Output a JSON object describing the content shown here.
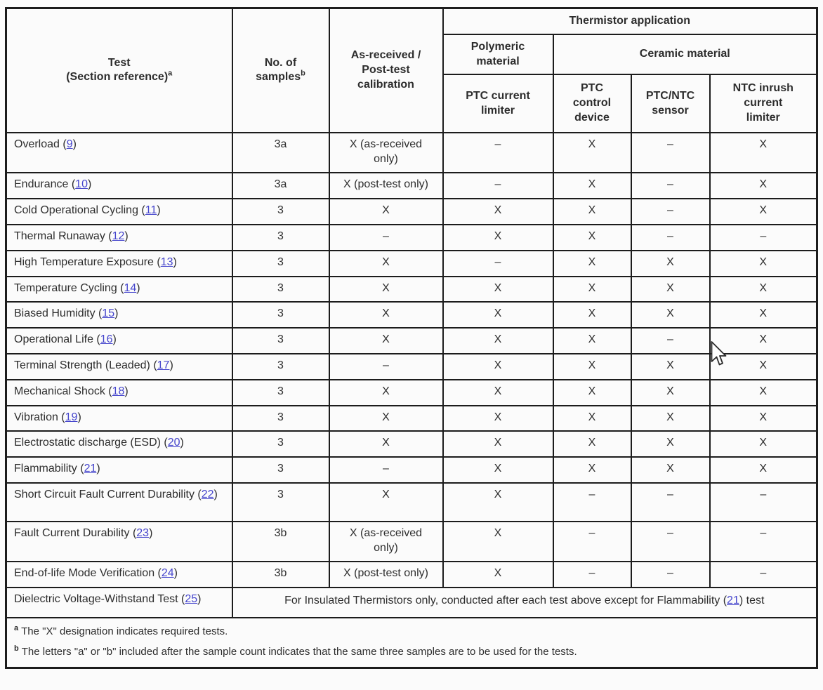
{
  "colors": {
    "link": "#4545cc",
    "border": "#1c1c1c",
    "text": "#2d2d2d",
    "page_bg": "#fbfbfb"
  },
  "header": {
    "test": "Test\n(Section reference)",
    "test_sup": "a",
    "samples": "No. of\nsamples",
    "samples_sup": "b",
    "calibration": "As-received /\nPost-test\ncalibration",
    "application": "Thermistor application",
    "polymeric": "Polymeric\nmaterial",
    "ceramic": "Ceramic material",
    "app_cols": [
      "PTC current\nlimiter",
      "PTC\ncontrol\ndevice",
      "PTC/NTC\nsensor",
      "NTC inrush\ncurrent\nlimiter"
    ]
  },
  "ref_wrap": {
    "open": " (",
    "close": ")"
  },
  "rows": [
    {
      "name": "Overload",
      "ref": "9",
      "samples": "3a",
      "calibration": "X (as-received only)",
      "apps": [
        "–",
        "X",
        "–",
        "X"
      ],
      "tall": true
    },
    {
      "name": "Endurance",
      "ref": "10",
      "samples": "3a",
      "calibration": "X (post-test only)",
      "apps": [
        "–",
        "X",
        "–",
        "X"
      ],
      "tall": false
    },
    {
      "name": "Cold Operational Cycling",
      "ref": "11",
      "samples": "3",
      "calibration": "X",
      "apps": [
        "X",
        "X",
        "–",
        "X"
      ],
      "tall": false
    },
    {
      "name": "Thermal Runaway",
      "ref": "12",
      "samples": "3",
      "calibration": "–",
      "apps": [
        "X",
        "X",
        "–",
        "–"
      ],
      "tall": false
    },
    {
      "name": "High Temperature Exposure",
      "ref": "13",
      "samples": "3",
      "calibration": "X",
      "apps": [
        "–",
        "X",
        "X",
        "X"
      ],
      "tall": false
    },
    {
      "name": "Temperature Cycling",
      "ref": "14",
      "samples": "3",
      "calibration": "X",
      "apps": [
        "X",
        "X",
        "X",
        "X"
      ],
      "tall": false
    },
    {
      "name": "Biased Humidity",
      "ref": "15",
      "samples": "3",
      "calibration": "X",
      "apps": [
        "X",
        "X",
        "X",
        "X"
      ],
      "tall": false
    },
    {
      "name": "Operational Life",
      "ref": "16",
      "samples": "3",
      "calibration": "X",
      "apps": [
        "X",
        "X",
        "–",
        "X"
      ],
      "tall": false
    },
    {
      "name": "Terminal Strength (Leaded)",
      "ref": "17",
      "samples": "3",
      "calibration": "–",
      "apps": [
        "X",
        "X",
        "X",
        "X"
      ],
      "tall": false
    },
    {
      "name": "Mechanical Shock",
      "ref": "18",
      "samples": "3",
      "calibration": "X",
      "apps": [
        "X",
        "X",
        "X",
        "X"
      ],
      "tall": false
    },
    {
      "name": "Vibration",
      "ref": "19",
      "samples": "3",
      "calibration": "X",
      "apps": [
        "X",
        "X",
        "X",
        "X"
      ],
      "tall": false
    },
    {
      "name": "Electrostatic discharge (ESD)",
      "ref": "20",
      "samples": "3",
      "calibration": "X",
      "apps": [
        "X",
        "X",
        "X",
        "X"
      ],
      "tall": false
    },
    {
      "name": "Flammability",
      "ref": "21",
      "samples": "3",
      "calibration": "–",
      "apps": [
        "X",
        "X",
        "X",
        "X"
      ],
      "tall": false
    },
    {
      "name": "Short Circuit Fault Current Durability",
      "ref": "22",
      "samples": "3",
      "calibration": "X",
      "apps": [
        "X",
        "–",
        "–",
        "–"
      ],
      "tall": true
    },
    {
      "name": "Fault Current Durability",
      "ref": "23",
      "samples": "3b",
      "calibration": "X (as-received only)",
      "apps": [
        "X",
        "–",
        "–",
        "–"
      ],
      "tall": true
    },
    {
      "name": "End-of-life Mode Verification",
      "ref": "24",
      "samples": "3b",
      "calibration": "X (post-test only)",
      "apps": [
        "X",
        "–",
        "–",
        "–"
      ],
      "tall": false
    }
  ],
  "dielectric": {
    "name": "Dielectric Voltage-Withstand Test",
    "ref": "25",
    "note_before": "For Insulated Thermistors only, conducted after each test above except for Flammability (",
    "note_ref": "21",
    "note_after": ") test"
  },
  "footnotes": [
    {
      "sup": "a",
      "text": "The \"X\" designation indicates required tests."
    },
    {
      "sup": "b",
      "text": "The letters \"a\" or \"b\" included after the sample count indicates that the same three samples are to be used for the tests."
    }
  ]
}
